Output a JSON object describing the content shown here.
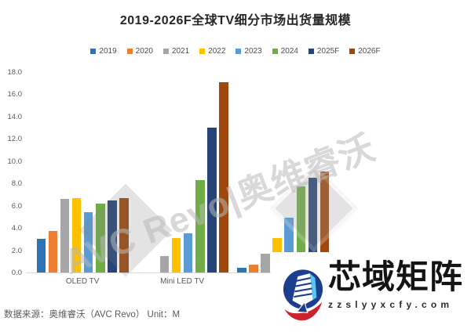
{
  "chart_data": {
    "type": "bar",
    "title": "2019-2026F全球TV细分市场出货量规模",
    "unit": "M",
    "categories": [
      "OLED TV",
      "Mini LED TV",
      ""
    ],
    "series": [
      {
        "name": "2019",
        "color": "#2E74B5",
        "values": [
          3.0,
          0,
          0.4
        ]
      },
      {
        "name": "2020",
        "color": "#ED7D31",
        "values": [
          3.7,
          0,
          0.7
        ]
      },
      {
        "name": "2021",
        "color": "#A6A6A6",
        "values": [
          6.6,
          1.5,
          1.7
        ]
      },
      {
        "name": "2022",
        "color": "#FFC000",
        "values": [
          6.7,
          3.1,
          3.1
        ]
      },
      {
        "name": "2023",
        "color": "#5B9BD5",
        "values": [
          5.4,
          3.5,
          4.9
        ]
      },
      {
        "name": "2024",
        "color": "#70AD47",
        "values": [
          6.2,
          8.3,
          7.7
        ]
      },
      {
        "name": "2025F",
        "color": "#264478",
        "values": [
          6.5,
          13.0,
          8.5
        ]
      },
      {
        "name": "2026F",
        "color": "#9E480E",
        "values": [
          6.7,
          17.1,
          9.1
        ]
      }
    ],
    "ylim": [
      0,
      18
    ],
    "ytick_step": 2,
    "ytick_decimals": 1,
    "grid": false,
    "legend_position": "top"
  },
  "watermark": {
    "text": "AVC Revo|奥维睿沃"
  },
  "footer": {
    "source": "数据来源：奥维睿沃（AVC Revo） Unit：M"
  },
  "logo": {
    "name": "芯域矩阵",
    "url": "zzslyyxcfy.com"
  }
}
